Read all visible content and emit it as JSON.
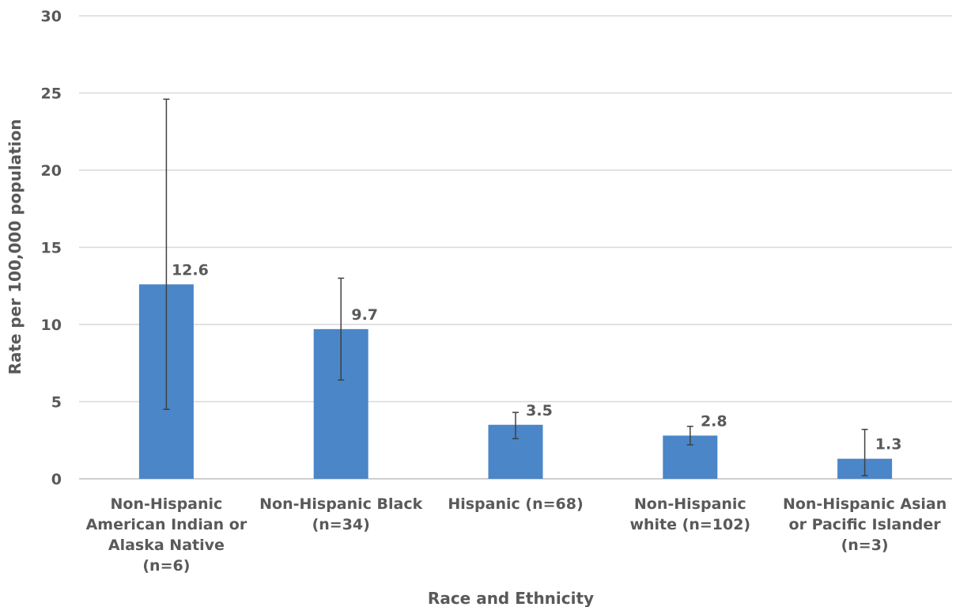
{
  "chart_data": {
    "type": "bar",
    "title": "",
    "xlabel": "Race and Ethnicity",
    "ylabel": "Rate per 100,000 population",
    "ylim": [
      0,
      30
    ],
    "yticks": [
      0,
      5,
      10,
      15,
      20,
      25,
      30
    ],
    "grid": true,
    "legend": "none",
    "bar_color": "#4a86c8",
    "categories": [
      [
        "Non-Hispanic",
        "American Indian or",
        "Alaska Native",
        "(n=6)"
      ],
      [
        "Non-Hispanic Black",
        "(n=34)"
      ],
      [
        "Hispanic (n=68)"
      ],
      [
        "Non-Hispanic",
        "white (n=102)"
      ],
      [
        "Non-Hispanic Asian",
        "or Pacific Islander",
        "(n=3)"
      ]
    ],
    "values": [
      12.6,
      9.7,
      3.5,
      2.8,
      1.3
    ],
    "value_labels": [
      "12.6",
      "9.7",
      "3.5",
      "2.8",
      "1.3"
    ],
    "error_low": [
      4.5,
      6.4,
      2.6,
      2.2,
      0.2
    ],
    "error_high": [
      24.6,
      13.0,
      4.3,
      3.4,
      3.2
    ]
  }
}
